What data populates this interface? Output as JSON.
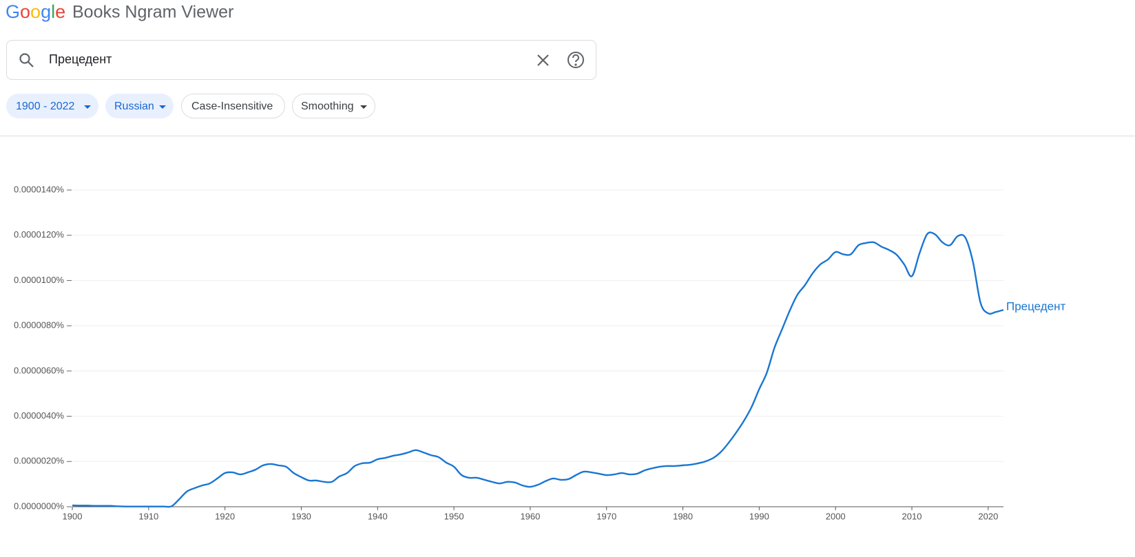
{
  "header": {
    "logo": "Google",
    "title": "Books Ngram Viewer"
  },
  "search": {
    "query": "Прецедент"
  },
  "filters": {
    "year_range": "1900 - 2022",
    "corpus": "Russian",
    "case": "Case-Insensitive",
    "smoothing": "Smoothing"
  },
  "chart_data": {
    "type": "line",
    "x": [
      1900,
      1901,
      1902,
      1903,
      1904,
      1905,
      1906,
      1907,
      1908,
      1909,
      1910,
      1911,
      1912,
      1913,
      1914,
      1915,
      1916,
      1917,
      1918,
      1919,
      1920,
      1921,
      1922,
      1923,
      1924,
      1925,
      1926,
      1927,
      1928,
      1929,
      1930,
      1931,
      1932,
      1933,
      1934,
      1935,
      1936,
      1937,
      1938,
      1939,
      1940,
      1941,
      1942,
      1943,
      1944,
      1945,
      1946,
      1947,
      1948,
      1949,
      1950,
      1951,
      1952,
      1953,
      1954,
      1955,
      1956,
      1957,
      1958,
      1959,
      1960,
      1961,
      1962,
      1963,
      1964,
      1965,
      1966,
      1967,
      1968,
      1969,
      1970,
      1971,
      1972,
      1973,
      1974,
      1975,
      1976,
      1977,
      1978,
      1979,
      1980,
      1981,
      1982,
      1983,
      1984,
      1985,
      1986,
      1987,
      1988,
      1989,
      1990,
      1991,
      1992,
      1993,
      1994,
      1995,
      1996,
      1997,
      1998,
      1999,
      2000,
      2001,
      2002,
      2003,
      2004,
      2005,
      2006,
      2007,
      2008,
      2009,
      2010,
      2011,
      2012,
      2013,
      2014,
      2015,
      2016,
      2017,
      2018,
      2019,
      2020,
      2021,
      2022
    ],
    "series": [
      {
        "name": "Прецедент",
        "color": "#1976d2",
        "values": [
          6e-08,
          5e-08,
          5e-08,
          4e-08,
          4e-08,
          4e-08,
          2e-08,
          1e-08,
          1e-08,
          1e-08,
          1e-08,
          1e-08,
          1e-08,
          2e-08,
          3.3e-07,
          6.7e-07,
          8.2e-07,
          9.4e-07,
          1.03e-06,
          1.25e-06,
          1.49e-06,
          1.52e-06,
          1.43e-06,
          1.52e-06,
          1.64e-06,
          1.83e-06,
          1.89e-06,
          1.83e-06,
          1.77e-06,
          1.49e-06,
          1.31e-06,
          1.16e-06,
          1.16e-06,
          1.1e-06,
          1.1e-06,
          1.34e-06,
          1.49e-06,
          1.8e-06,
          1.92e-06,
          1.95e-06,
          2.1e-06,
          2.16e-06,
          2.25e-06,
          2.31e-06,
          2.4e-06,
          2.5e-06,
          2.4e-06,
          2.28e-06,
          2.19e-06,
          1.95e-06,
          1.77e-06,
          1.4e-06,
          1.28e-06,
          1.28e-06,
          1.19e-06,
          1.1e-06,
          1.03e-06,
          1.1e-06,
          1.07e-06,
          9.4e-07,
          8.8e-07,
          9.7e-07,
          1.13e-06,
          1.25e-06,
          1.19e-06,
          1.22e-06,
          1.4e-06,
          1.55e-06,
          1.52e-06,
          1.46e-06,
          1.4e-06,
          1.43e-06,
          1.49e-06,
          1.43e-06,
          1.46e-06,
          1.61e-06,
          1.7e-06,
          1.77e-06,
          1.8e-06,
          1.8e-06,
          1.83e-06,
          1.86e-06,
          1.92e-06,
          2.01e-06,
          2.16e-06,
          2.43e-06,
          2.83e-06,
          3.29e-06,
          3.8e-06,
          4.41e-06,
          5.2e-06,
          5.93e-06,
          7.03e-06,
          7.85e-06,
          8.67e-06,
          9.37e-06,
          9.8e-06,
          1.032e-05,
          1.071e-05,
          1.093e-05,
          1.126e-05,
          1.116e-05,
          1.116e-05,
          1.156e-05,
          1.166e-05,
          1.169e-05,
          1.15e-05,
          1.135e-05,
          1.114e-05,
          1.071e-05,
          1.019e-05,
          1.12e-05,
          1.205e-05,
          1.205e-05,
          1.169e-05,
          1.156e-05,
          1.196e-05,
          1.19e-05,
          1.083e-05,
          9.01e-06,
          8.55e-06,
          8.61e-06,
          8.7e-06
        ]
      }
    ],
    "xlim": [
      1900,
      2022
    ],
    "xticks": [
      1900,
      1910,
      1920,
      1930,
      1940,
      1950,
      1960,
      1970,
      1980,
      1990,
      2000,
      2010,
      2020
    ],
    "ylim": [
      0,
      1.4e-05
    ],
    "yticks": [
      {
        "value": 0,
        "label": "0.0000000%"
      },
      {
        "value": 2e-06,
        "label": "0.0000020%"
      },
      {
        "value": 4e-06,
        "label": "0.0000040%"
      },
      {
        "value": 6e-06,
        "label": "0.0000060%"
      },
      {
        "value": 8e-06,
        "label": "0.0000080%"
      },
      {
        "value": 1e-05,
        "label": "0.0000100%"
      },
      {
        "value": 1.2e-05,
        "label": "0.0000120%"
      },
      {
        "value": 1.4e-05,
        "label": "0.0000140%"
      }
    ],
    "grid": true
  }
}
